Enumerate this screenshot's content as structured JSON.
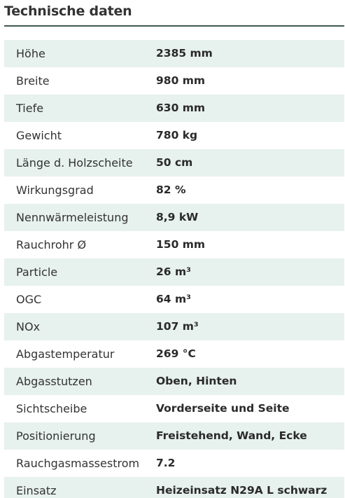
{
  "header": {
    "title": "Technische daten"
  },
  "colors": {
    "shaded_row": "#e7f1ee",
    "header_rule": "#3e5a52",
    "text": "#333333"
  },
  "rows": [
    {
      "label": "Höhe",
      "value": "2385 mm"
    },
    {
      "label": "Breite",
      "value": "980 mm"
    },
    {
      "label": "Tiefe",
      "value": "630 mm"
    },
    {
      "label": "Gewicht",
      "value": "780 kg"
    },
    {
      "label": "Länge d. Holzscheite",
      "value": "50 cm"
    },
    {
      "label": "Wirkungsgrad",
      "value": "82 %"
    },
    {
      "label": "Nennwärmeleistung",
      "value": "8,9 kW"
    },
    {
      "label": "Rauchrohr Ø",
      "value": "150 mm"
    },
    {
      "label": "Particle",
      "value": "26 m³"
    },
    {
      "label": "OGC",
      "value": "64 m³"
    },
    {
      "label": "NOx",
      "value": "107 m³"
    },
    {
      "label": "Abgastemperatur",
      "value": "269 °C"
    },
    {
      "label": "Abgasstutzen",
      "value": "Oben, Hinten"
    },
    {
      "label": "Sichtscheibe",
      "value": "Vorderseite und Seite"
    },
    {
      "label": "Positionierung",
      "value": "Freistehend, Wand, Ecke"
    },
    {
      "label": "Rauchgasmassestrom",
      "value": "7.2"
    },
    {
      "label": "Einsatz",
      "value": "Heizeinsatz N29A L schwarz"
    }
  ]
}
